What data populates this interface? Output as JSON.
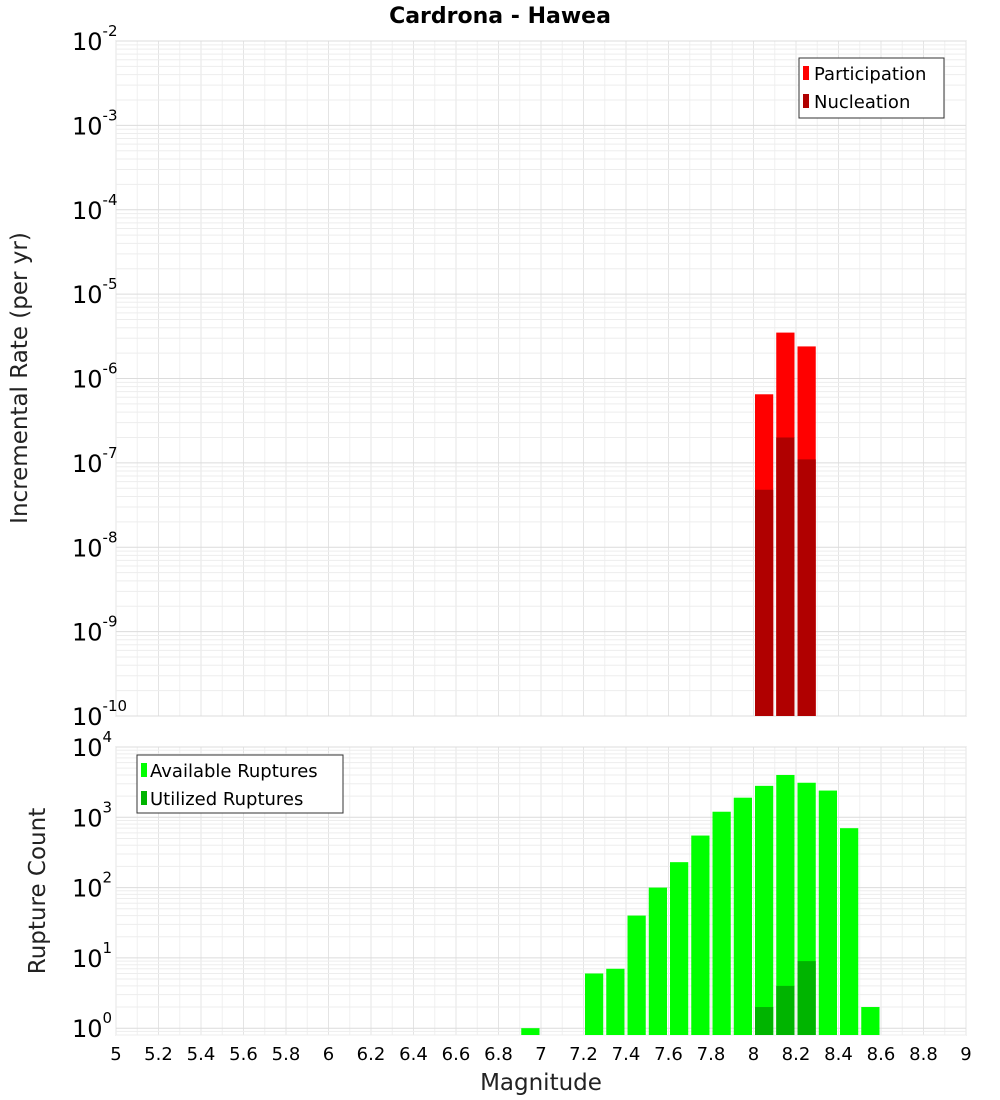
{
  "chart_data": [
    {
      "type": "bar",
      "title": "Cardrona - Hawea",
      "xlabel": "Magnitude",
      "ylabel": "Incremental Rate (per yr)",
      "yscale": "log",
      "ylim": [
        1e-10,
        0.01
      ],
      "xlim": [
        5,
        9
      ],
      "bin_width": 0.1,
      "ytick_exponents": [
        -10,
        -9,
        -8,
        -7,
        -6,
        -5,
        -4,
        -3,
        -2
      ],
      "legend_position": "top-right",
      "series": [
        {
          "name": "Participation",
          "color": "#ff0000",
          "x": [
            8.05,
            8.15,
            8.25
          ],
          "values": [
            6.5e-07,
            3.5e-06,
            2.4e-06
          ]
        },
        {
          "name": "Nucleation",
          "color": "#b00000",
          "x": [
            8.05,
            8.15,
            8.25
          ],
          "values": [
            4.8e-08,
            2e-07,
            1.1e-07
          ]
        }
      ]
    },
    {
      "type": "bar",
      "xlabel": "Magnitude",
      "ylabel": "Rupture Count",
      "yscale": "log",
      "ylim": [
        0.8,
        10000
      ],
      "xlim": [
        5,
        9
      ],
      "bin_width": 0.1,
      "ytick_exponents": [
        0,
        1,
        2,
        3,
        4
      ],
      "xticks": [
        "5",
        "5.2",
        "5.4",
        "5.6",
        "5.8",
        "6",
        "6.2",
        "6.4",
        "6.6",
        "6.8",
        "7",
        "7.2",
        "7.4",
        "7.6",
        "7.8",
        "8",
        "8.2",
        "8.4",
        "8.6",
        "8.8",
        "9"
      ],
      "legend_position": "top-left",
      "series": [
        {
          "name": "Available Ruptures",
          "color": "#00ff00",
          "x": [
            6.95,
            7.25,
            7.35,
            7.45,
            7.55,
            7.65,
            7.75,
            7.85,
            7.95,
            8.05,
            8.15,
            8.25,
            8.35,
            8.45,
            8.55
          ],
          "values": [
            1,
            6,
            7,
            40,
            100,
            230,
            550,
            1200,
            1900,
            2800,
            4000,
            3100,
            2400,
            700,
            2
          ]
        },
        {
          "name": "Utilized Ruptures",
          "color": "#00b400",
          "x": [
            8.05,
            8.15,
            8.25
          ],
          "values": [
            2,
            4,
            9
          ]
        }
      ]
    }
  ]
}
